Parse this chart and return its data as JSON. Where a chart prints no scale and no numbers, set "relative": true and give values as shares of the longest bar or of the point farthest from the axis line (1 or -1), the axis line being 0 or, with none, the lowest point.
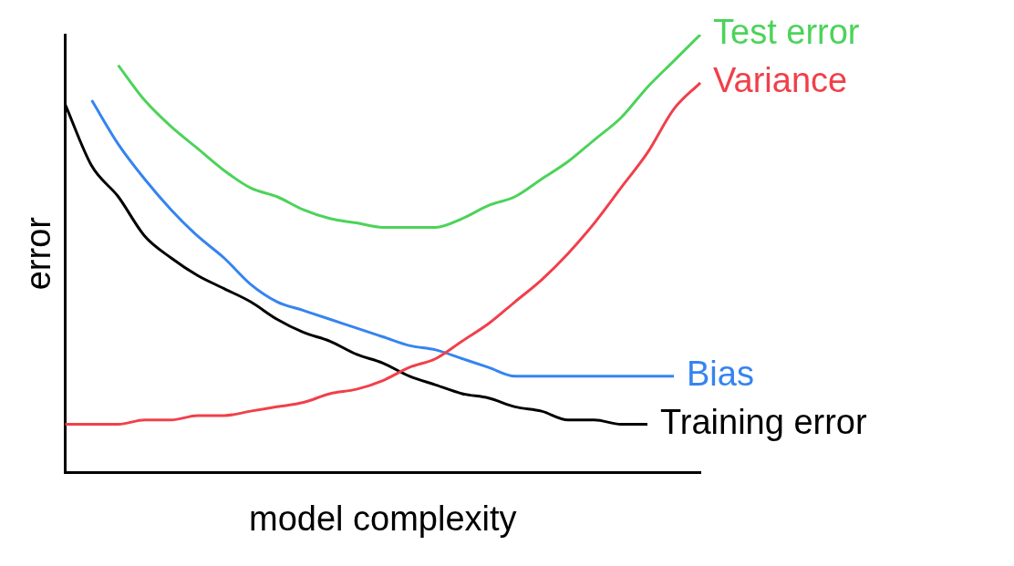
{
  "chart_data": {
    "type": "line",
    "relative": true,
    "xlabel": "model complexity",
    "ylabel": "error",
    "legend": false,
    "grid": false,
    "categories": [
      null,
      null,
      null,
      null,
      null,
      null,
      null,
      null,
      null,
      null,
      null,
      null,
      null,
      null,
      null,
      null,
      null,
      null,
      null,
      null,
      null,
      null,
      null,
      null,
      null
    ],
    "series": [
      {
        "name": "Test error",
        "color": "#4cd35a",
        "values": [
          null,
          null,
          0.93,
          0.85,
          0.79,
          0.74,
          0.69,
          0.65,
          0.63,
          0.6,
          0.58,
          0.57,
          0.56,
          0.56,
          0.56,
          0.58,
          0.61,
          0.63,
          0.67,
          0.71,
          0.76,
          0.81,
          0.88,
          0.94,
          1
        ]
      },
      {
        "name": "Variance",
        "color": "#f0404a",
        "values": [
          0.11,
          0.11,
          0.11,
          0.12,
          0.12,
          0.13,
          0.13,
          0.14,
          0.15,
          0.16,
          0.18,
          0.19,
          0.21,
          0.24,
          0.26,
          0.3,
          0.34,
          0.39,
          0.44,
          0.5,
          0.57,
          0.65,
          0.73,
          0.83,
          0.89
        ]
      },
      {
        "name": "Bias",
        "color": "#3584f0",
        "values": [
          null,
          0.85,
          0.75,
          0.67,
          0.6,
          0.54,
          0.49,
          0.43,
          0.39,
          0.37,
          0.35,
          0.33,
          0.31,
          0.29,
          0.28,
          0.26,
          0.24,
          0.22,
          0.22,
          0.22,
          0.22,
          0.22,
          0.22,
          0.22,
          null
        ]
      },
      {
        "name": "Training error",
        "color": "#000000",
        "values": [
          0.84,
          0.7,
          0.63,
          0.54,
          0.49,
          0.45,
          0.42,
          0.39,
          0.35,
          0.32,
          0.3,
          0.27,
          0.25,
          0.22,
          0.2,
          0.18,
          0.17,
          0.15,
          0.14,
          0.12,
          0.12,
          0.11,
          0.11,
          null,
          null
        ]
      }
    ]
  }
}
